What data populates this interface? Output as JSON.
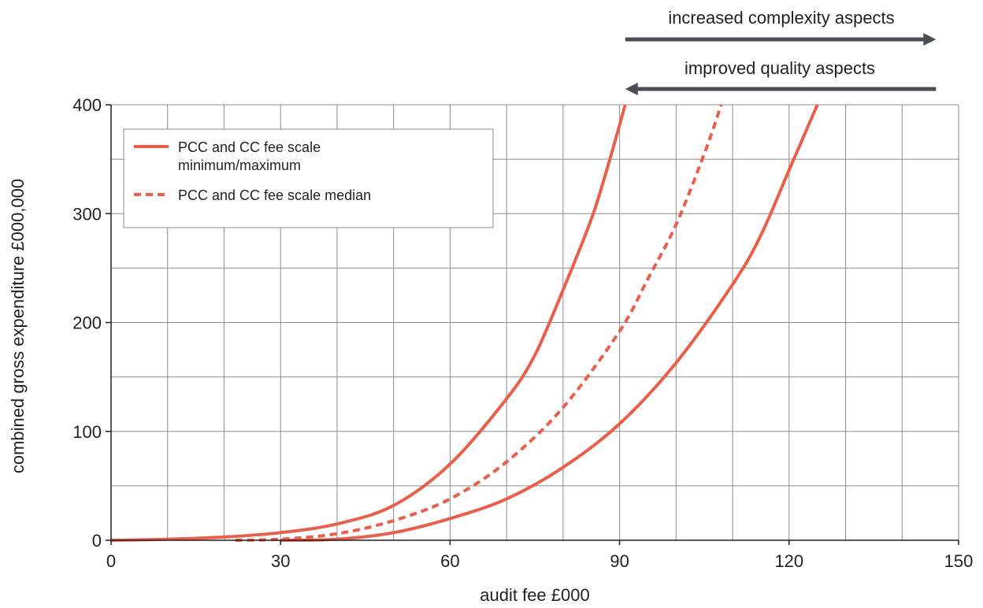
{
  "chart_data": {
    "type": "line",
    "xlabel": "audit fee £000",
    "ylabel": "combined gross expenditure £000,000",
    "xlim": [
      0,
      150
    ],
    "ylim": [
      0,
      400
    ],
    "x_ticks": [
      0,
      30,
      60,
      90,
      120,
      150
    ],
    "y_ticks": [
      0,
      100,
      200,
      300,
      400
    ],
    "x_tick_labels": [
      "0",
      "30",
      "60",
      "90",
      "120",
      "150"
    ],
    "y_tick_labels": [
      "0",
      "100",
      "200",
      "300",
      "400"
    ],
    "x_grid_step": 10,
    "y_grid_step": 50,
    "grid": true,
    "legend": {
      "placement": "top-left",
      "entries": [
        {
          "label_line1": "PCC and CC fee scale",
          "label_line2": "minimum/maximum",
          "style": "solid"
        },
        {
          "label_line1": "PCC and CC fee scale median",
          "style": "dashed"
        }
      ]
    },
    "series": [
      {
        "style": "solid",
        "points": [
          [
            0,
            0
          ],
          [
            10,
            1
          ],
          [
            20,
            3
          ],
          [
            30,
            7
          ],
          [
            40,
            15
          ],
          [
            50,
            32
          ],
          [
            60,
            70
          ],
          [
            70,
            130
          ],
          [
            75,
            170
          ],
          [
            80,
            230
          ],
          [
            85,
            295
          ],
          [
            88,
            345
          ],
          [
            91,
            400
          ]
        ]
      },
      {
        "style": "dashed",
        "points": [
          [
            22,
            0
          ],
          [
            30,
            1
          ],
          [
            40,
            6
          ],
          [
            50,
            18
          ],
          [
            60,
            38
          ],
          [
            70,
            72
          ],
          [
            80,
            122
          ],
          [
            90,
            192
          ],
          [
            95,
            240
          ],
          [
            100,
            290
          ],
          [
            105,
            355
          ],
          [
            108,
            400
          ]
        ]
      },
      {
        "style": "solid",
        "points": [
          [
            30,
            0
          ],
          [
            40,
            1
          ],
          [
            50,
            7
          ],
          [
            60,
            20
          ],
          [
            70,
            38
          ],
          [
            80,
            67
          ],
          [
            90,
            107
          ],
          [
            100,
            163
          ],
          [
            110,
            235
          ],
          [
            115,
            280
          ],
          [
            120,
            340
          ],
          [
            125,
            400
          ]
        ]
      }
    ],
    "annotations": [
      {
        "text": "increased complexity aspects",
        "arrow": "right",
        "x_from": 91,
        "x_to": 146
      },
      {
        "text": "improved quality aspects",
        "arrow": "left",
        "x_from": 146,
        "x_to": 91
      }
    ]
  },
  "colors": {
    "series": "#e8604c",
    "grid": "#8c8c8c",
    "axis": "#231f20",
    "arrow": "#4a4d55",
    "text": "#231f20"
  }
}
